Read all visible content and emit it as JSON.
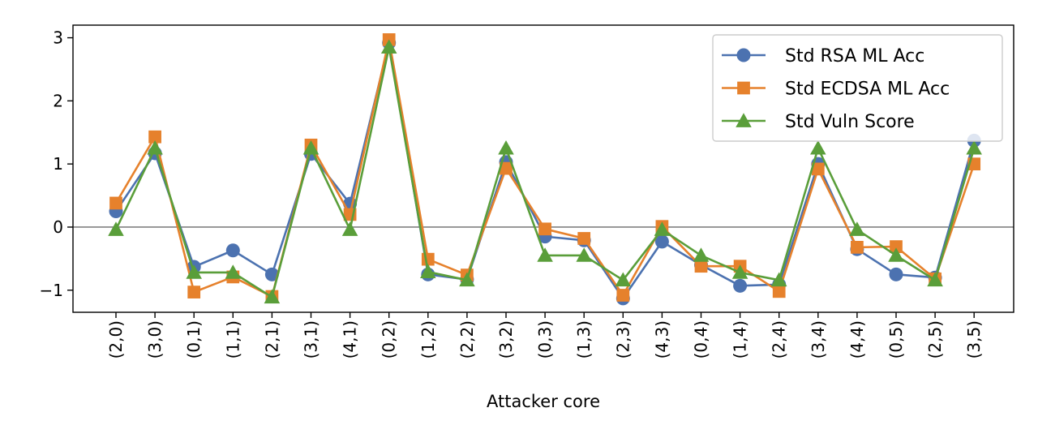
{
  "chart_data": {
    "type": "line",
    "xlabel": "Attacker core",
    "ylabel": "",
    "ylim": [
      -1.35,
      3.2
    ],
    "yticks": [
      -1,
      0,
      1,
      2,
      3
    ],
    "zero_line": true,
    "legend_position": "top-right",
    "categories": [
      "(2,0)",
      "(3,0)",
      "(0,1)",
      "(1,1)",
      "(2,1)",
      "(3,1)",
      "(4,1)",
      "(0,2)",
      "(1,2)",
      "(2,2)",
      "(3,2)",
      "(0,3)",
      "(1,3)",
      "(2,3)",
      "(4,3)",
      "(0,4)",
      "(1,4)",
      "(2,4)",
      "(3,4)",
      "(4,4)",
      "(0,5)",
      "(2,5)",
      "(3,5)"
    ],
    "series": [
      {
        "name": "Std RSA ML Acc",
        "color": "#4c72b0",
        "marker": "circle",
        "values": [
          0.25,
          1.17,
          -0.63,
          -0.37,
          -0.75,
          1.16,
          0.37,
          2.92,
          -0.75,
          -0.83,
          1.03,
          -0.15,
          -0.21,
          -1.13,
          -0.23,
          -0.6,
          -0.93,
          -0.91,
          1.0,
          -0.35,
          -0.75,
          -0.8,
          1.37
        ]
      },
      {
        "name": "Std ECDSA ML Acc",
        "color": "#e6812c",
        "marker": "square",
        "values": [
          0.38,
          1.43,
          -1.03,
          -0.79,
          -1.1,
          1.3,
          0.2,
          2.97,
          -0.51,
          -0.76,
          0.93,
          -0.03,
          -0.18,
          -1.08,
          0.01,
          -0.62,
          -0.62,
          -1.02,
          0.92,
          -0.32,
          -0.31,
          -0.82,
          1.0
        ]
      },
      {
        "name": "Std Vuln Score",
        "color": "#5a9e3a",
        "marker": "triangle",
        "values": [
          -0.04,
          1.25,
          -0.72,
          -0.72,
          -1.11,
          1.25,
          -0.04,
          2.85,
          -0.71,
          -0.84,
          1.25,
          -0.45,
          -0.45,
          -0.84,
          -0.04,
          -0.45,
          -0.72,
          -0.84,
          1.25,
          -0.04,
          -0.45,
          -0.84,
          1.25
        ]
      }
    ]
  }
}
